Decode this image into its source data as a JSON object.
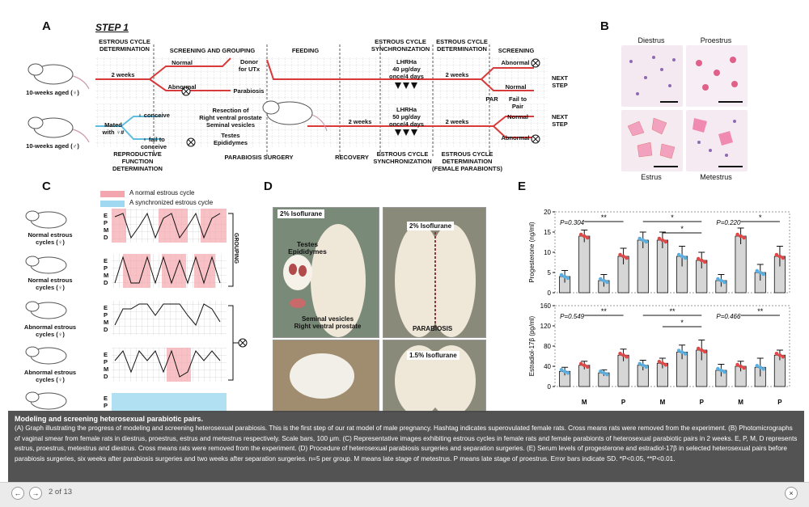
{
  "panels": {
    "a": "A",
    "b": "B",
    "c": "C",
    "d": "D",
    "e": "E"
  },
  "panel_a": {
    "step": "STEP 1",
    "top_headers": [
      "ESTROUS CYCLE\nDETERMINATION",
      "SCREENING AND GROUPING",
      "FEEDING",
      "ESTROUS CYCLE\nSYNCHRONIZATION",
      "ESTROUS CYCLE\nDETERMINATION",
      "SCREENING"
    ],
    "bottom_headers": [
      "REPRODUCTIVE FUNCTION\nDETERMINATION",
      "PARABIOSIS SURGERY",
      "RECOVERY",
      "ESTROUS CYCLE\nSYNCHRONIZATION",
      "ESTROUS CYCLE\nDETERMINATION\n(FEMALE PARABIONTS)"
    ],
    "rat_female": "10-weeks aged (♀)",
    "rat_male": "10-weeks aged (♂)",
    "two_weeks": "2 weeks",
    "normal": "Normal",
    "abnormal": "Abnormal",
    "donor": "Donor\nfor UTx",
    "parabiosis": "Parabiosis",
    "lhrha_top": "LHRHa\n40 μg/day\nonce/4 days",
    "lhrha_bottom": "LHRHa\n50 μg/day\nonce/4 days",
    "mated": "Mated\nwith ♀#",
    "conceive": "♀ conceive",
    "fail_conceive": "♀ fail to\nconceive",
    "resection": "Resection of\nRight ventral prostate\nSeminal vesicles",
    "testes": "Testes\nEpididymes",
    "par": "PAR",
    "fail_pair": "Fail to\nPair",
    "next_step": "NEXT\nSTEP"
  },
  "panel_b": {
    "labels": [
      "Diestrus",
      "Proestrus",
      "Estrus",
      "Metestrus"
    ]
  },
  "panel_c": {
    "legend_normal": "A normal estrous cycle",
    "legend_sync": "A synchronized estrous cycle",
    "groups": [
      "Normal estrous\ncycles (♀)",
      "Normal estrous\ncycles (♀)",
      "Abnormal estrous\ncycles (♀)",
      "Abnormal estrous\ncycles (♀)"
    ],
    "stages": [
      "E",
      "P",
      "M",
      "D"
    ],
    "grouping": "GROUPING"
  },
  "panel_d": {
    "iso2a": "2% Isoflurane",
    "iso2b": "2% Isoflurane",
    "iso15": "1.5% Isoflurane",
    "testes": "Testes\nEpididymes",
    "seminal": "Seminal vesicles\nRight ventral prostate",
    "parabiosis": "PARABIOSIS"
  },
  "chart_data": [
    {
      "type": "bar",
      "ylabel": "Progesterone (ng/ml)",
      "ylim": [
        0,
        20
      ],
      "yticks": [
        0,
        5,
        10,
        15,
        20
      ],
      "values": [
        4,
        14,
        3,
        9,
        13,
        13,
        9,
        8,
        3,
        14,
        5,
        9
      ],
      "errors": [
        1.5,
        1.5,
        1.5,
        2,
        2,
        2,
        2.5,
        2,
        1.5,
        2,
        2,
        2.5
      ],
      "colors": [
        "#5aaee0",
        "#e04848",
        "#5aaee0",
        "#e04848",
        "#5aaee0",
        "#e04848",
        "#5aaee0",
        "#e04848",
        "#5aaee0",
        "#e04848",
        "#5aaee0",
        "#e04848"
      ],
      "annotations": [
        "P=0.304",
        "**",
        "*",
        "*",
        "P=0.220",
        "*"
      ]
    },
    {
      "type": "bar",
      "ylabel": "Estradiol-17β (pg/ml)",
      "ylim": [
        0,
        160
      ],
      "yticks": [
        0,
        40,
        80,
        120,
        160
      ],
      "values": [
        30,
        42,
        27,
        62,
        42,
        46,
        68,
        72,
        32,
        40,
        38,
        62
      ],
      "errors": [
        8,
        8,
        6,
        12,
        10,
        10,
        14,
        20,
        12,
        10,
        18,
        10
      ],
      "colors": [
        "#5aaee0",
        "#e04848",
        "#5aaee0",
        "#e04848",
        "#5aaee0",
        "#e04848",
        "#5aaee0",
        "#e04848",
        "#5aaee0",
        "#e04848",
        "#5aaee0",
        "#e04848"
      ],
      "annotations": [
        "P=0.549",
        "**",
        "**",
        "*",
        "P=0.466",
        "**"
      ]
    }
  ],
  "panel_e_axis": [
    "M",
    "P",
    "M",
    "P",
    "M",
    "P"
  ],
  "caption": {
    "title": "Modeling and screening heterosexual parabiotic pairs.",
    "body": "(A) Graph illustrating the progress of modeling and screening heterosexual parabiosis. This is the first step of our rat model of male pregnancy. Hashtag indicates superovulated female rats. Cross means rats were removed from the experiment. (B) Photomicrographs of vaginal smear from female rats in diestrus, proestrus, estrus and metestrus respectively. Scale bars, 100 μm. (C) Representative images exhibiting estrous cycles in female rats and female parabionts of heterosexual parabiotic pairs in 2 weeks. E, P, M, D represents estrus, proestrus, metestrus and diestrus. Cross means rats were removed from the experiment. (D) Procedure of heterosexual parabiosis surgeries and separation surgeries. (E) Serum levels of progesterone and estradiol-17β in selected heterosexual pairs before parabiosis surgeries, six weeks after parabiosis surgeries and two weeks after separation surgeries. n=5 per group. M means late stage of metestrus. P means late stage of proestrus. Error bars indicate SD. *P<0.05, **P<0.01."
  },
  "nav": {
    "prev": "←",
    "next": "→",
    "counter": "2 of 13",
    "close": "×"
  }
}
